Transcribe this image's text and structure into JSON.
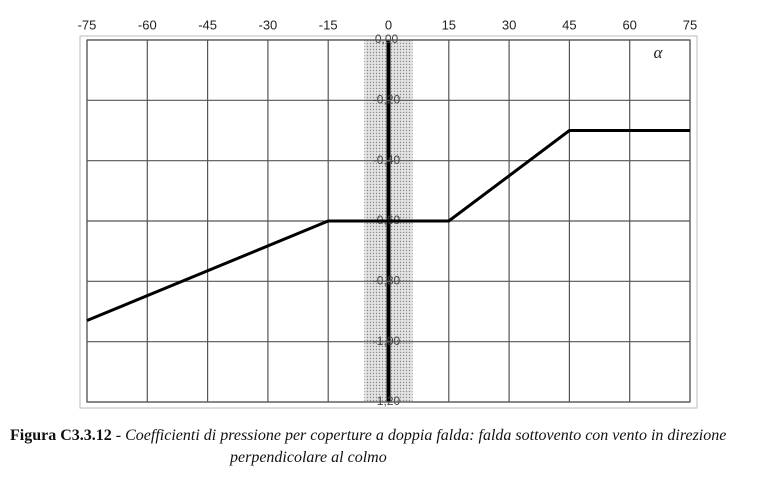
{
  "chart_data": {
    "type": "line",
    "x_axis_label": "α",
    "caption_label": "Figura C3.3.12",
    "caption_text": "- Coefficienti di pressione per coperture a doppia falda: falda sottovento con vento in direzione perpendicolare al colmo",
    "x": [
      -75,
      -15,
      15,
      45,
      75
    ],
    "series": [
      {
        "color": "#000000",
        "values": [
          -0.93,
          -0.6,
          -0.6,
          -0.3,
          -0.3
        ]
      }
    ],
    "xlim": [
      -75,
      75
    ],
    "xticks": [
      -75,
      -60,
      -45,
      -30,
      -15,
      0,
      15,
      30,
      45,
      60,
      75
    ],
    "ylim": [
      -1.2,
      0
    ],
    "yticks": [
      {
        "value": 0,
        "label": "0,00"
      },
      {
        "value": -0.2,
        "label": "-0,20"
      },
      {
        "value": -0.4,
        "label": "-0,40"
      },
      {
        "value": -0.6,
        "label": "-0,60"
      },
      {
        "value": -0.8,
        "label": "-0,80"
      },
      {
        "value": -1.0,
        "label": "-1,00"
      },
      {
        "value": -1.2,
        "label": "-1,20"
      }
    ],
    "shaded_band": [
      -6,
      6
    ],
    "grid": true
  }
}
